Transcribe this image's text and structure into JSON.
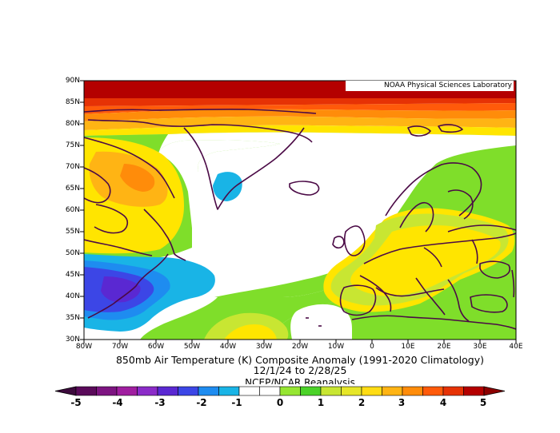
{
  "map": {
    "credit": "NOAA Physical Sciences Laboratory",
    "title_line1": "850mb Air Temperature (K) Composite Anomaly (1991-2020 Climatology)",
    "title_line2": "12/1/24   to 2/28/25",
    "title_line3": "NCEP/NCAR Reanalysis",
    "lat_labels": [
      "90N",
      "85N",
      "80N",
      "75N",
      "70N",
      "65N",
      "60N",
      "55N",
      "50N",
      "45N",
      "40N",
      "35N",
      "30N"
    ],
    "lon_labels": [
      "80W",
      "70W",
      "60W",
      "50W",
      "40W",
      "30W",
      "20W",
      "10W",
      "0",
      "10E",
      "20E",
      "30E",
      "40E"
    ],
    "colorbar": {
      "tick_labels": [
        "-5",
        "-4",
        "-3",
        "-2",
        "-1",
        "0",
        "1",
        "2",
        "3",
        "4",
        "5"
      ],
      "colors": [
        "#5a0a5a",
        "#7d1481",
        "#a01ea0",
        "#8b2bc8",
        "#5a28d2",
        "#3c46e6",
        "#1e8cf0",
        "#19b4e6",
        "#ffffff",
        "#ffffff",
        "#96e632",
        "#4bd228",
        "#c8e632",
        "#e6e628",
        "#ffdc14",
        "#ffb414",
        "#ff8c0a",
        "#ff5a0a",
        "#e63205",
        "#b40000"
      ],
      "left_arrow_color": "#3c0a3c",
      "right_arrow_color": "#8c0000"
    },
    "colors": {
      "coastline": "#4b0a46",
      "neutral": "#ffffff",
      "light_warm": "#7fde2a",
      "warm": "#ffe500",
      "cold": "#3c46e6"
    }
  }
}
